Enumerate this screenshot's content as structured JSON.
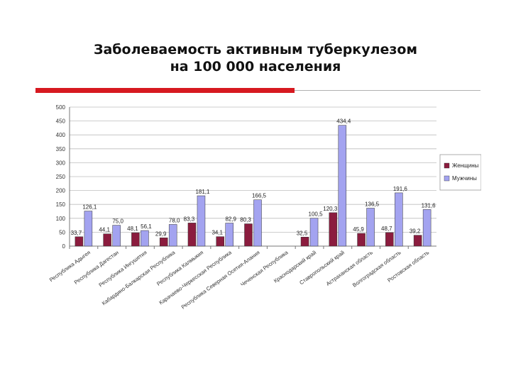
{
  "slide": {
    "title_line1": "Заболеваемость активным туберкулезом",
    "title_line2": "на 100 000 населения"
  },
  "colors": {
    "accent": "#d71920",
    "women": "#8b1c3e",
    "men": "#a3a3f0"
  },
  "chart_data": {
    "type": "bar",
    "title": "",
    "xlabel": "",
    "ylabel": "",
    "ylim": [
      0,
      500
    ],
    "yticks": [
      "0",
      "50",
      "100",
      "150",
      "200",
      "250",
      "300",
      "350",
      "400",
      "450",
      "500"
    ],
    "grid": true,
    "legend_position": "right",
    "categories": [
      "Республика Адыгея",
      "Республика Дагестан",
      "Республика Ингушетия",
      "Кабардино-Балкарская Республика",
      "Республика Калмыкия",
      "Карачаево-Черкесская Республика",
      "Республика Северная Осетия-Алания",
      "Чеченская Республика",
      "Краснодарский край",
      "Ставропольский край",
      "Астраханская область",
      "Волгоградская область",
      "Ростовская область"
    ],
    "series": [
      {
        "name": "Женщины",
        "color": "#8b1c3e",
        "values": [
          33.7,
          44.1,
          48.1,
          29.9,
          83.3,
          34.1,
          80.3,
          null,
          32.5,
          120.3,
          45.9,
          48.7,
          39.2
        ],
        "labels": [
          "33,7",
          "44,1",
          "48,1",
          "29,9",
          "83,3",
          "34,1",
          "80,3",
          "",
          "32,5",
          "120,3",
          "45,9",
          "48,7",
          "39,2"
        ]
      },
      {
        "name": "Мужчины",
        "color": "#a3a3f0",
        "values": [
          126.1,
          75.0,
          56.1,
          78.0,
          181.1,
          82.9,
          166.5,
          null,
          100.5,
          434.4,
          136.5,
          191.6,
          131.6
        ],
        "labels": [
          "126,1",
          "75,0",
          "56,1",
          "78,0",
          "181,1",
          "82,9",
          "166,5",
          "",
          "100,5",
          "434,4",
          "136,5",
          "191,6",
          "131,6"
        ]
      }
    ]
  }
}
